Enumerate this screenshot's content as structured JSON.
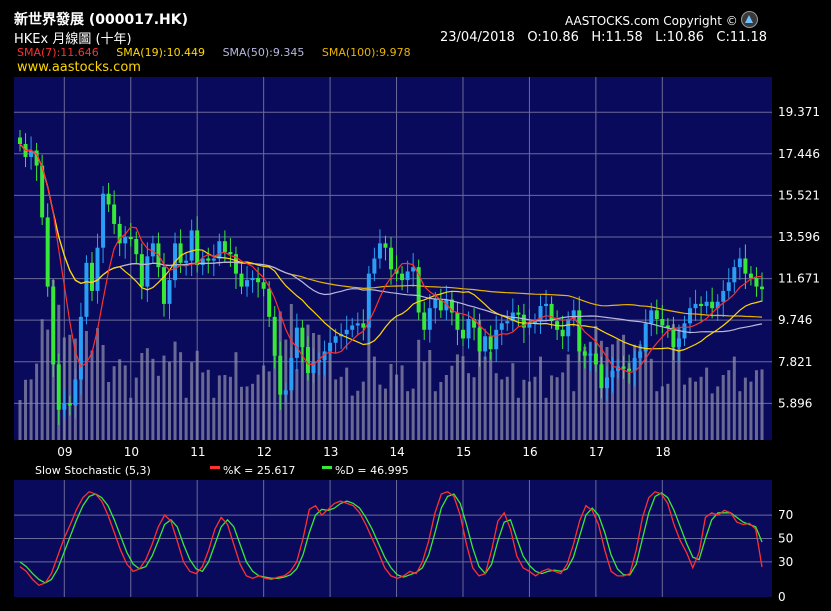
{
  "header": {
    "title": "新世界發展 (000017.HK)",
    "subtitle": "HKEx 月線圖 (十年)",
    "copyright": "AASTOCKS.com Copyright ©",
    "website": "www.aastocks.com",
    "date": "23/04/2018",
    "open": "O:10.86",
    "high": "H:11.58",
    "low": "L:10.86",
    "close": "C:11.18"
  },
  "sma_legend": [
    {
      "label": "SMA(7):11.646",
      "color": "#ff3030"
    },
    {
      "label": "SMA(19):10.449",
      "color": "#ffd700"
    },
    {
      "label": "SMA(50):9.345",
      "color": "#b8b8e0"
    },
    {
      "label": "SMA(100):9.978",
      "color": "#e8b400"
    }
  ],
  "colors": {
    "background": "#000000",
    "plot_background": "#0a0a5c",
    "grid": "#6a6a98",
    "up_candle": "#2a9df4",
    "down_candle": "#38e838",
    "volume": "#8a8aa6"
  },
  "chart_data": [
    {
      "type": "candlestick",
      "title": "新世界發展 (000017.HK)",
      "x_tick_labels": [
        "09",
        "10",
        "11",
        "12",
        "13",
        "14",
        "15",
        "16",
        "17",
        "18"
      ],
      "y_tick_labels": [
        "19.371",
        "17.446",
        "15.521",
        "13.596",
        "11.671",
        "9.746",
        "7.821",
        "5.896"
      ],
      "ylim": [
        4.2,
        21.0
      ],
      "grid": true,
      "ohlc_monthly_closes": [
        17.9,
        17.3,
        17.6,
        16.9,
        14.5,
        11.3,
        7.7,
        5.6,
        5.9,
        5.8,
        7.0,
        9.9,
        12.4,
        11.1,
        13.1,
        15.6,
        15.1,
        14.2,
        13.3,
        13.6,
        13.5,
        12.8,
        11.3,
        12.7,
        13.3,
        12.2,
        10.5,
        11.6,
        13.3,
        12.4,
        12.5,
        13.9,
        12.3,
        12.6,
        12.5,
        12.6,
        13.4,
        12.9,
        12.8,
        11.9,
        11.3,
        11.6,
        11.7,
        11.5,
        11.2,
        9.9,
        8.1,
        6.3,
        6.5,
        8.0,
        9.4,
        8.5,
        7.3,
        7.8,
        7.9,
        8.3,
        8.7,
        9.0,
        9.1,
        9.3,
        9.5,
        9.6,
        9.4,
        11.9,
        12.6,
        13.3,
        13.1,
        12.1,
        11.9,
        11.6,
        12.0,
        12.2,
        10.1,
        9.3,
        10.3,
        10.7,
        10.2,
        10.7,
        10.1,
        9.3,
        8.9,
        9.8,
        9.4,
        8.3,
        9.0,
        8.4,
        9.3,
        9.6,
        9.7,
        10.1,
        10.0,
        9.4,
        9.6,
        9.7,
        10.4,
        10.5,
        9.7,
        9.3,
        9.0,
        9.8,
        10.2,
        8.3,
        8.1,
        8.2,
        7.7,
        6.6,
        7.1,
        7.4,
        7.6,
        7.5,
        7.4,
        8.0,
        8.3,
        9.6,
        10.2,
        9.8,
        9.5,
        9.4,
        8.5,
        8.9,
        9.6,
        10.3,
        10.5,
        10.4,
        10.6,
        10.3,
        10.6,
        11.1,
        11.5,
        12.2,
        12.6,
        11.9,
        11.7,
        11.3,
        11.18
      ],
      "sma_final_values": {
        "SMA(7)": 11.646,
        "SMA(19)": 10.449,
        "SMA(50)": 9.345,
        "SMA(100)": 9.978
      },
      "last_bar": {
        "date": "23/04/2018",
        "open": 10.86,
        "high": 11.58,
        "low": 10.86,
        "close": 11.18
      }
    },
    {
      "type": "line",
      "title": "Slow Stochastic (5,3)",
      "legend": [
        "%K = 25.617",
        "%D = 46.995"
      ],
      "y_tick_labels": [
        "70",
        "50",
        "30",
        "0"
      ],
      "ylim": [
        0,
        100
      ],
      "grid": true,
      "series": [
        {
          "name": "%K = 25.617",
          "color": "#ff3030",
          "values": [
            26,
            22,
            15,
            10,
            12,
            20,
            35,
            50,
            62,
            75,
            85,
            90,
            88,
            82,
            70,
            55,
            40,
            28,
            22,
            24,
            32,
            45,
            60,
            70,
            65,
            48,
            30,
            22,
            20,
            26,
            40,
            58,
            68,
            62,
            45,
            28,
            18,
            16,
            18,
            16,
            15,
            17,
            18,
            22,
            30,
            50,
            75,
            78,
            70,
            75,
            80,
            82,
            80,
            78,
            72,
            62,
            50,
            38,
            25,
            18,
            16,
            18,
            22,
            20,
            30,
            48,
            72,
            88,
            90,
            86,
            70,
            45,
            25,
            18,
            20,
            40,
            65,
            72,
            58,
            35,
            25,
            22,
            18,
            22,
            24,
            22,
            20,
            28,
            45,
            65,
            78,
            74,
            62,
            40,
            22,
            18,
            18,
            20,
            40,
            68,
            85,
            90,
            88,
            80,
            62,
            48,
            38,
            25,
            38,
            68,
            72,
            70,
            74,
            72,
            64,
            62,
            63,
            58,
            25.6
          ]
        },
        {
          "name": "%D = 46.995",
          "color": "#38e838",
          "values": [
            30,
            26,
            20,
            15,
            12,
            15,
            24,
            38,
            52,
            66,
            78,
            86,
            88,
            85,
            78,
            66,
            52,
            38,
            28,
            24,
            26,
            35,
            48,
            62,
            66,
            60,
            45,
            32,
            24,
            22,
            30,
            45,
            60,
            66,
            60,
            45,
            30,
            22,
            18,
            17,
            16,
            16,
            17,
            19,
            24,
            36,
            55,
            70,
            75,
            74,
            76,
            80,
            82,
            80,
            76,
            68,
            58,
            46,
            34,
            25,
            19,
            17,
            19,
            21,
            25,
            36,
            55,
            76,
            86,
            88,
            80,
            62,
            42,
            26,
            20,
            28,
            48,
            64,
            66,
            50,
            35,
            27,
            22,
            20,
            22,
            23,
            22,
            24,
            34,
            52,
            70,
            76,
            70,
            55,
            36,
            24,
            19,
            19,
            28,
            50,
            72,
            86,
            89,
            85,
            74,
            60,
            46,
            34,
            32,
            50,
            66,
            72,
            72,
            72,
            68,
            64,
            62,
            60,
            47.0
          ]
        }
      ]
    }
  ]
}
